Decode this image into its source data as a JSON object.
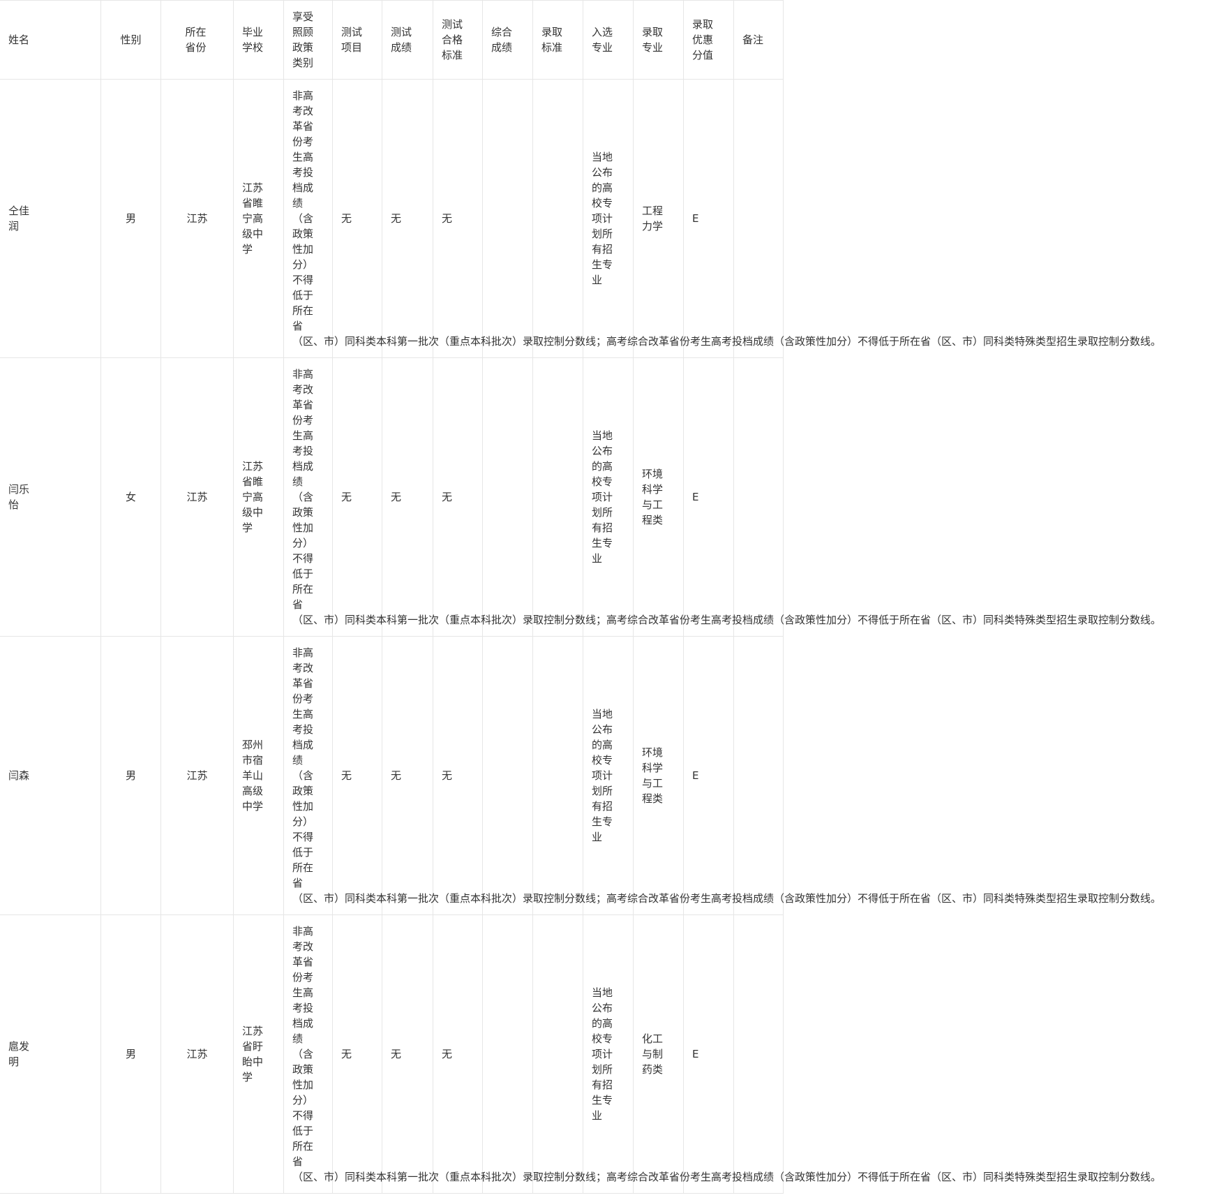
{
  "table": {
    "header": [
      "姓名",
      "性别",
      "所在省份",
      "毕业学校",
      "享受照顾政策类别",
      "测试项目",
      "测试成绩",
      "测试合格标准",
      "综合成绩",
      "录取标准",
      "入选专业",
      "录取专业",
      "录取优惠分值",
      "备注"
    ],
    "rows": [
      [
        "仝佳润",
        "男",
        "江苏",
        "江苏省睢宁高级中学",
        [
          "非高考改革省份考生高考投档成绩（含政策性加分）不得低于所在省",
          "（区、市）同科类本科第一批次（重点本科批次）录取控制分数线；高考综合改革省份考生高考投档成绩（含政策性加分）不得低于所在省（区、市）同科类特殊类型招生录取控制分数线。"
        ],
        "无",
        "无",
        "无",
        null,
        null,
        "当地公布的高校专项计划所有招生专业",
        "工程力学",
        "E",
        null
      ],
      [
        "闫乐怡",
        "女",
        "江苏",
        "江苏省睢宁高级中学",
        [
          "非高考改革省份考生高考投档成绩（含政策性加分）不得低于所在省",
          "（区、市）同科类本科第一批次（重点本科批次）录取控制分数线；高考综合改革省份考生高考投档成绩（含政策性加分）不得低于所在省（区、市）同科类特殊类型招生录取控制分数线。"
        ],
        "无",
        "无",
        "无",
        null,
        null,
        "当地公布的高校专项计划所有招生专业",
        "环境科学与工程类",
        "E",
        null
      ],
      [
        "闫森",
        "男",
        "江苏",
        "邳州市宿羊山高级中学",
        [
          "非高考改革省份考生高考投档成绩（含政策性加分）不得低于所在省",
          "（区、市）同科类本科第一批次（重点本科批次）录取控制分数线；高考综合改革省份考生高考投档成绩（含政策性加分）不得低于所在省（区、市）同科类特殊类型招生录取控制分数线。"
        ],
        "无",
        "无",
        "无",
        null,
        null,
        "当地公布的高校专项计划所有招生专业",
        "环境科学与工程类",
        "E",
        null
      ],
      [
        "扈发明",
        "男",
        "江苏",
        "江苏省盱眙中学",
        [
          "非高考改革省份考生高考投档成绩（含政策性加分）不得低于所在省",
          "（区、市）同科类本科第一批次（重点本科批次）录取控制分数线；高考综合改革省份考生高考投档成绩（含政策性加分）不得低于所在省（区、市）同科类特殊类型招生录取控制分数线。"
        ],
        "无",
        "无",
        "无",
        null,
        null,
        "当地公布的高校专项计划所有招生专业",
        "化工与制药类",
        "E",
        null
      ]
    ]
  }
}
